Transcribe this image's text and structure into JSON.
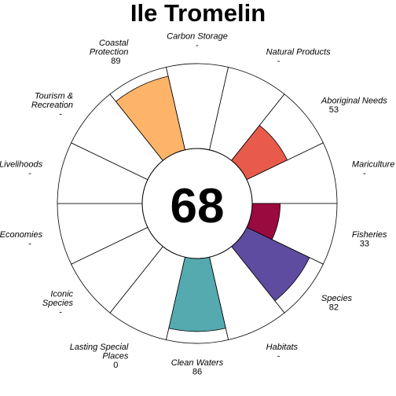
{
  "chart_data": {
    "type": "flower",
    "title": "Ile Tromelin",
    "center_score": "68",
    "max_value": 100,
    "petals": [
      {
        "name": "Carbon Storage",
        "lines": [
          "Carbon Storage"
        ],
        "display": "-",
        "value": null,
        "color": ""
      },
      {
        "name": "Natural Products",
        "lines": [
          "Natural Products"
        ],
        "display": "-",
        "value": null,
        "color": ""
      },
      {
        "name": "Aboriginal Needs",
        "lines": [
          "Aboriginal Needs"
        ],
        "display": "53",
        "value": 53,
        "color": "#e85a4a"
      },
      {
        "name": "Mariculture",
        "lines": [
          "Mariculture"
        ],
        "display": "-",
        "value": null,
        "color": ""
      },
      {
        "name": "Fisheries",
        "lines": [
          "Fisheries"
        ],
        "display": "33",
        "value": 33,
        "color": "#9a0a3e"
      },
      {
        "name": "Species",
        "lines": [
          "Species"
        ],
        "display": "82",
        "value": 82,
        "color": "#5e4ca0"
      },
      {
        "name": "Habitats",
        "lines": [
          "Habitats"
        ],
        "display": "-",
        "value": null,
        "color": ""
      },
      {
        "name": "Clean Waters",
        "lines": [
          "Clean Waters"
        ],
        "display": "86",
        "value": 86,
        "color": "#55aab0"
      },
      {
        "name": "Lasting Special Places",
        "lines": [
          "Lasting Special",
          "Places"
        ],
        "display": "0",
        "value": 0,
        "color": ""
      },
      {
        "name": "Iconic Species",
        "lines": [
          "Iconic",
          "Species"
        ],
        "display": "-",
        "value": null,
        "color": ""
      },
      {
        "name": "Economies",
        "lines": [
          "Economies"
        ],
        "display": "-",
        "value": null,
        "color": ""
      },
      {
        "name": "Livelihoods",
        "lines": [
          "Livelihoods"
        ],
        "display": "-",
        "value": null,
        "color": ""
      },
      {
        "name": "Tourism & Recreation",
        "lines": [
          "Tourism &",
          "Recreation"
        ],
        "display": "-",
        "value": null,
        "color": ""
      },
      {
        "name": "Coastal Protection",
        "lines": [
          "Coastal",
          "Protection"
        ],
        "display": "89",
        "value": 89,
        "color": "#fdb468"
      }
    ]
  }
}
